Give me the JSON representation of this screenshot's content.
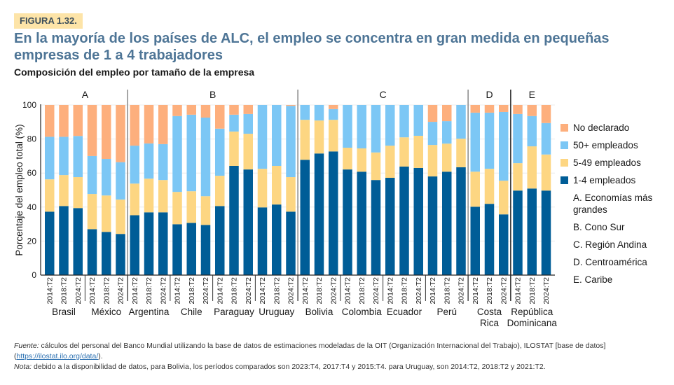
{
  "figure_label": "FIGURA 1.32.",
  "title": "En la mayoría de los países de ALC, el empleo se concentra en gran medida en pequeñas empresas de 1 a 4 trabajadores",
  "subtitle": "Composición del empleo por tamaño de la empresa",
  "chart_data": {
    "type": "bar",
    "stacked": true,
    "title": "Composición del empleo por tamaño de la empresa",
    "xlabel": "",
    "ylabel": "Porcentaje del empleo total (%)",
    "ylim": [
      0,
      100
    ],
    "yticks": [
      0,
      20,
      40,
      60,
      80,
      100
    ],
    "grid": true,
    "legend_position": "right",
    "colors": {
      "1-4 empleados": "#005D97",
      "5-49 empleados": "#FDD682",
      "50+ empleados": "#7CC7F5",
      "No declarado": "#FDAF7D"
    },
    "groups": [
      {
        "letter": "A",
        "name": "Economías más grandes",
        "countries": [
          "Brasil",
          "México"
        ]
      },
      {
        "letter": "B",
        "name": "Cono Sur",
        "countries": [
          "Argentina",
          "Chile",
          "Paraguay",
          "Uruguay"
        ]
      },
      {
        "letter": "C",
        "name": "Región Andina",
        "countries": [
          "Bolivia",
          "Colombia",
          "Ecuador",
          "Perú"
        ]
      },
      {
        "letter": "D",
        "name": "Centroamérica",
        "countries": [
          "Costa Rica"
        ]
      },
      {
        "letter": "E",
        "name": "Caribe",
        "countries": [
          "República Dominicana"
        ]
      }
    ],
    "countries": [
      {
        "name": "Brasil",
        "label_lines": [
          "Brasil"
        ]
      },
      {
        "name": "México",
        "label_lines": [
          "México"
        ]
      },
      {
        "name": "Argentina",
        "label_lines": [
          "Argentina"
        ]
      },
      {
        "name": "Chile",
        "label_lines": [
          "Chile"
        ]
      },
      {
        "name": "Paraguay",
        "label_lines": [
          "Paraguay"
        ]
      },
      {
        "name": "Uruguay",
        "label_lines": [
          "Uruguay"
        ]
      },
      {
        "name": "Bolivia",
        "label_lines": [
          "Bolivia"
        ]
      },
      {
        "name": "Colombia",
        "label_lines": [
          "Colombia"
        ]
      },
      {
        "name": "Ecuador",
        "label_lines": [
          "Ecuador"
        ]
      },
      {
        "name": "Perú",
        "label_lines": [
          "Perú"
        ]
      },
      {
        "name": "Costa Rica",
        "label_lines": [
          "Costa",
          "Rica"
        ]
      },
      {
        "name": "República Dominicana",
        "label_lines": [
          "República",
          "Dominicana"
        ]
      }
    ],
    "periods": [
      "2014:T2",
      "2018:T2",
      "2024:T2"
    ],
    "series": [
      {
        "name": "1-4 empleados",
        "values": [
          37.3,
          40.6,
          39.4,
          27.0,
          25.4,
          24.2,
          35.2,
          36.9,
          36.9,
          29.9,
          30.7,
          29.5,
          40.6,
          64.2,
          62.1,
          39.8,
          41.5,
          37.3,
          67.8,
          71.5,
          72.7,
          62.1,
          60.8,
          55.9,
          57.2,
          63.8,
          63.0,
          58.0,
          60.8,
          63.4,
          40.2,
          41.9,
          35.7,
          49.7,
          50.9,
          49.7
        ]
      },
      {
        "name": "5-49 empleados",
        "values": [
          19.0,
          18.2,
          18.2,
          20.7,
          21.4,
          20.2,
          18.6,
          19.8,
          19.0,
          19.0,
          18.6,
          16.9,
          17.8,
          20.2,
          21.0,
          22.7,
          22.7,
          20.3,
          23.5,
          19.4,
          18.6,
          12.8,
          13.7,
          16.2,
          18.9,
          17.2,
          18.9,
          18.5,
          16.5,
          16.8,
          20.6,
          20.6,
          19.8,
          16.1,
          24.8,
          21.2
        ]
      },
      {
        "name": "50+ empleados",
        "values": [
          25.0,
          22.5,
          24.2,
          22.3,
          21.5,
          22.0,
          22.3,
          20.7,
          21.1,
          44.6,
          45.0,
          46.2,
          27.7,
          9.9,
          11.6,
          37.5,
          35.8,
          41.9,
          8.7,
          9.1,
          6.3,
          25.1,
          25.5,
          27.9,
          23.9,
          19.0,
          18.1,
          13.6,
          13.2,
          19.8,
          34.7,
          33.0,
          40.4,
          28.9,
          17.8,
          18.5
        ]
      },
      {
        "name": "No declarado",
        "values": [
          18.7,
          18.7,
          18.2,
          30.0,
          31.7,
          33.6,
          23.9,
          22.6,
          23.0,
          6.5,
          5.7,
          7.4,
          13.9,
          5.7,
          5.3,
          0.0,
          0.0,
          0.5,
          0.0,
          0.0,
          2.4,
          0.0,
          0.0,
          0.0,
          0.0,
          0.0,
          0.0,
          9.9,
          9.5,
          0.0,
          4.5,
          4.5,
          4.1,
          5.3,
          6.5,
          10.6
        ]
      }
    ]
  },
  "legend": {
    "items": [
      {
        "label": "No declarado",
        "color": "#FDAF7D"
      },
      {
        "label": "50+ empleados",
        "color": "#7CC7F5"
      },
      {
        "label": "5-49 empleados",
        "color": "#FDD682"
      },
      {
        "label": "1-4 empleados",
        "color": "#005D97"
      }
    ],
    "notes": [
      "A. Economías más grandes",
      "B. Cono Sur",
      "C. Región Andina",
      "D. Centroamérica",
      "E. Caribe"
    ]
  },
  "footer": {
    "source_label": "Fuente:",
    "source_text": " cálculos del personal del Banco Mundial utilizando la base de datos de estimaciones modeladas de la OIT (Organización Internacional del Trabajo), ILOSTAT [base de datos] (",
    "source_link": "https://ilostat.ilo.org/data/",
    "source_end": ").",
    "note_label": "Nota:",
    "note_text": " debido a la disponibilidad de datos, para Bolivia, los períodos comparados son 2023:T4, 2017:T4 y 2015:T4. para Uruguay, son 2014:T2, 2018:T2 y 2021:T2."
  }
}
